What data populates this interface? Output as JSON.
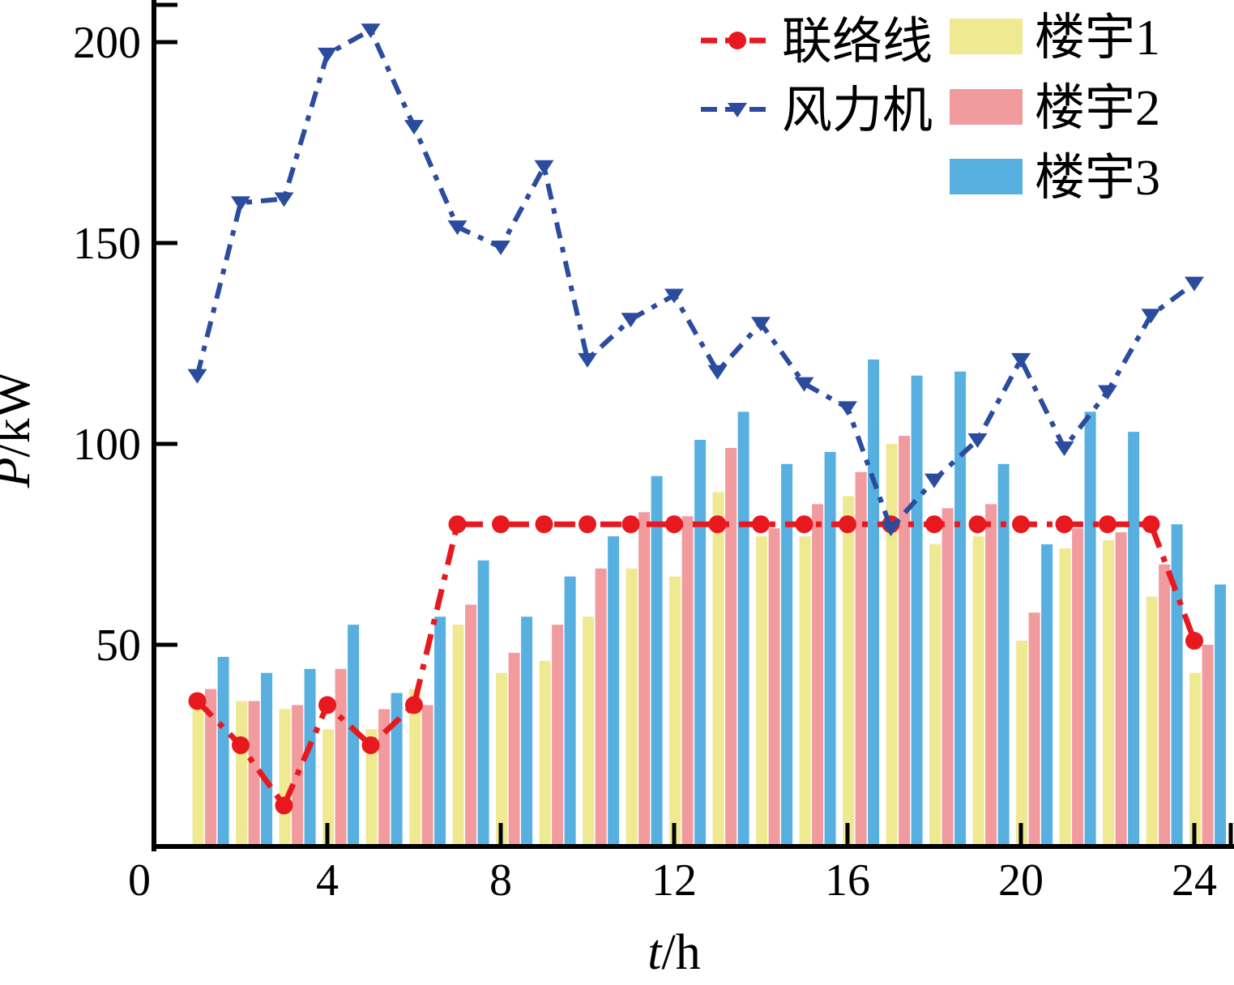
{
  "figure": {
    "background": "#ffffff",
    "axis_color": "#000000"
  },
  "axes": {
    "x": {
      "label": "t/h",
      "ticks": [
        0,
        4,
        8,
        12,
        16,
        20,
        24
      ]
    },
    "y": {
      "label": "P/kW",
      "ticks": [
        50,
        100,
        150,
        200
      ]
    }
  },
  "legend": {
    "line_entries": [
      {
        "label": "联络线",
        "color": "#e8191e",
        "marker": "circle"
      },
      {
        "label": "风力机",
        "color": "#2b4b9e",
        "marker": "triangle-down"
      }
    ],
    "swatch_entries": [
      {
        "label": "楼宇1",
        "color": "#efe992"
      },
      {
        "label": "楼宇2",
        "color": "#f29b9e"
      },
      {
        "label": "楼宇3",
        "color": "#57b0e0"
      }
    ]
  },
  "chart_data": {
    "type": "bar",
    "title": "",
    "xlabel": "t/h",
    "ylabel": "P/kW",
    "x": [
      1,
      2,
      3,
      4,
      5,
      6,
      7,
      8,
      9,
      10,
      11,
      12,
      13,
      14,
      15,
      16,
      17,
      18,
      19,
      20,
      21,
      22,
      23,
      24
    ],
    "xlim": [
      0,
      24.9
    ],
    "ylim": [
      0,
      210
    ],
    "grid": false,
    "legend_position": "top-right",
    "series": [
      {
        "name": "联络线",
        "kind": "line",
        "color": "#e8191e",
        "marker": "circle",
        "linestyle": "dash-dot",
        "values": [
          36,
          25,
          10,
          35,
          25,
          35,
          80,
          80,
          80,
          80,
          80,
          80,
          80,
          80,
          80,
          80,
          80,
          80,
          80,
          80,
          80,
          80,
          80,
          51
        ]
      },
      {
        "name": "风力机",
        "kind": "line",
        "color": "#2b4b9e",
        "marker": "triangle-down",
        "linestyle": "dash-dot",
        "values": [
          117,
          160,
          161,
          197,
          203,
          179,
          154,
          149,
          169,
          121,
          131,
          137,
          118,
          130,
          115,
          109,
          79,
          91,
          101,
          121,
          99,
          113,
          132,
          140
        ]
      },
      {
        "name": "楼宇1",
        "kind": "bar",
        "color": "#efe992",
        "values": [
          35,
          36,
          34,
          29,
          29,
          39,
          55,
          43,
          46,
          57,
          69,
          67,
          88,
          77,
          77,
          87,
          100,
          75,
          77,
          51,
          74,
          76,
          62,
          43
        ]
      },
      {
        "name": "楼宇2",
        "kind": "bar",
        "color": "#f29b9e",
        "values": [
          39,
          36,
          35,
          44,
          34,
          35,
          60,
          48,
          55,
          69,
          83,
          82,
          99,
          79,
          85,
          93,
          102,
          84,
          85,
          58,
          79,
          78,
          70,
          50
        ]
      },
      {
        "name": "楼宇3",
        "kind": "bar",
        "color": "#57b0e0",
        "values": [
          47,
          43,
          44,
          55,
          38,
          57,
          71,
          57,
          67,
          77,
          92,
          101,
          108,
          95,
          98,
          121,
          117,
          118,
          95,
          75,
          108,
          103,
          80,
          65
        ]
      }
    ]
  }
}
